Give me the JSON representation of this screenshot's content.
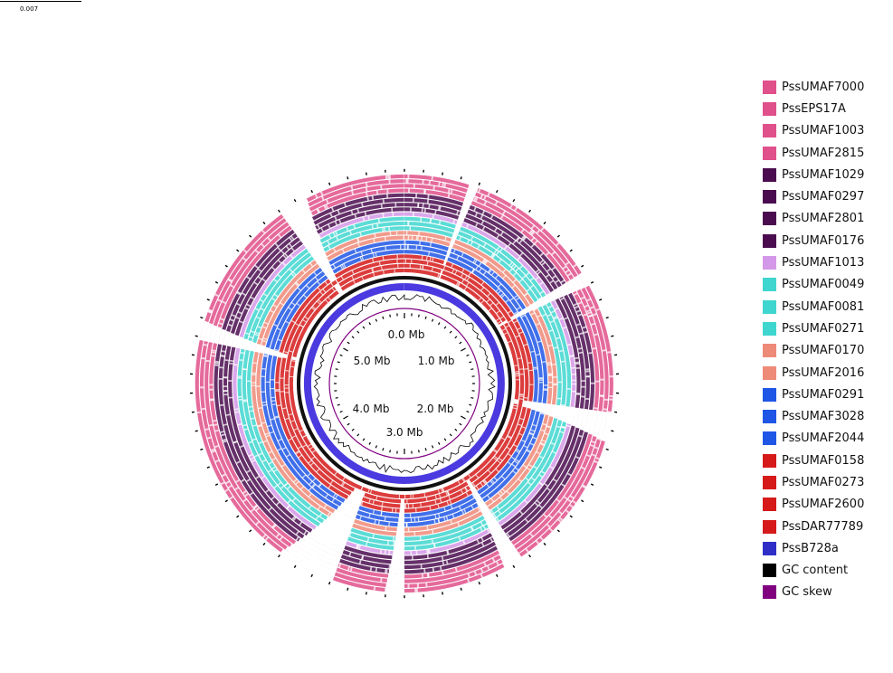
{
  "scale_bar": {
    "label": "0.007"
  },
  "ring_labels": [
    "0.0 Mb",
    "1.0 Mb",
    "2.0 Mb",
    "3.0 Mb",
    "4.0 Mb",
    "5.0 Mb"
  ],
  "legend": [
    {
      "label": "PssUMAF7000",
      "color": "#e0508a"
    },
    {
      "label": "PssEPS17A",
      "color": "#e0508a"
    },
    {
      "label": "PssUMAF1003",
      "color": "#e0508a"
    },
    {
      "label": "PssUMAF2815",
      "color": "#e0508a"
    },
    {
      "label": "PssUMAF1029",
      "color": "#4a0c4f"
    },
    {
      "label": "PssUMAF0297",
      "color": "#4a0c4f"
    },
    {
      "label": "PssUMAF2801",
      "color": "#4a0c4f"
    },
    {
      "label": "PssUMAF0176",
      "color": "#4a0c4f"
    },
    {
      "label": "PssUMAF1013",
      "color": "#d498e8"
    },
    {
      "label": "PssUMAF0049",
      "color": "#3fd6cf"
    },
    {
      "label": "PssUMAF0081",
      "color": "#3fd6cf"
    },
    {
      "label": "PssUMAF0271",
      "color": "#3fd6cf"
    },
    {
      "label": "PssUMAF0170",
      "color": "#ee8a78"
    },
    {
      "label": "PssUMAF2016",
      "color": "#ee8a78"
    },
    {
      "label": "PssUMAF0291",
      "color": "#1f56e6"
    },
    {
      "label": "PssUMAF3028",
      "color": "#1f56e6"
    },
    {
      "label": "PssUMAF2044",
      "color": "#1f56e6"
    },
    {
      "label": "PssUMAF0158",
      "color": "#d61a1a"
    },
    {
      "label": "PssUMAF0273",
      "color": "#d61a1a"
    },
    {
      "label": "PssUMAF2600",
      "color": "#d61a1a"
    },
    {
      "label": "PssDAR77789",
      "color": "#d61a1a"
    },
    {
      "label": "PssB728a",
      "color": "#2f2fc8"
    },
    {
      "label": "GC content",
      "color": "#000000"
    },
    {
      "label": "GC skew",
      "color": "#800080"
    }
  ]
}
